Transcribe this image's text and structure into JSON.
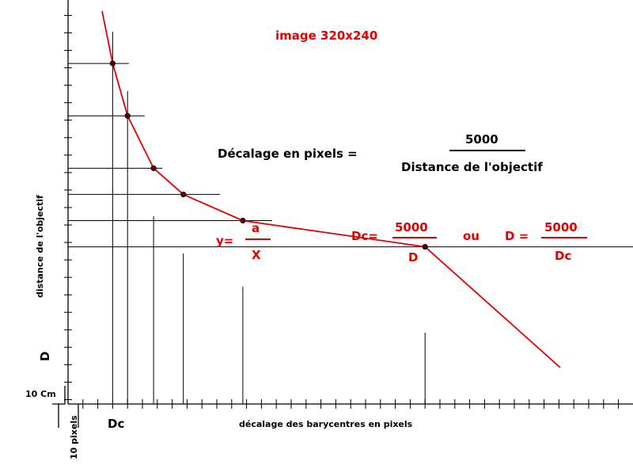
{
  "chart_data": {
    "type": "line",
    "title": "image 320x240",
    "xlabel": "décalage des barycentres en pixels",
    "ylabel": "distance de l'objectif",
    "x": [
      6,
      8,
      11.5,
      15.5,
      23.5,
      48
    ],
    "y": [
      780,
      660,
      540,
      480,
      420,
      360
    ],
    "axis_markers": {
      "x_axis": "Dc",
      "y_axis": "D"
    },
    "scale": {
      "vertical": "10 Cm",
      "horizontal": "10 pixels"
    },
    "formula_main": {
      "left": "Décalage en pixels  =",
      "numerator": "5000",
      "denominator": "Distance de l'objectif"
    },
    "formula_general": {
      "left": "y=",
      "numerator": "a",
      "denominator": "X"
    },
    "formula_dc": {
      "left": "Dc=",
      "numerator": "5000",
      "denominator": "D"
    },
    "formula_or": "ou",
    "formula_d": {
      "left": "D =",
      "numerator": "5000",
      "denominator": "Dc"
    },
    "colors": {
      "curve": "#e00000",
      "axes": "#000000",
      "annotation": "#e00000"
    },
    "grid": false,
    "legend": "none"
  }
}
